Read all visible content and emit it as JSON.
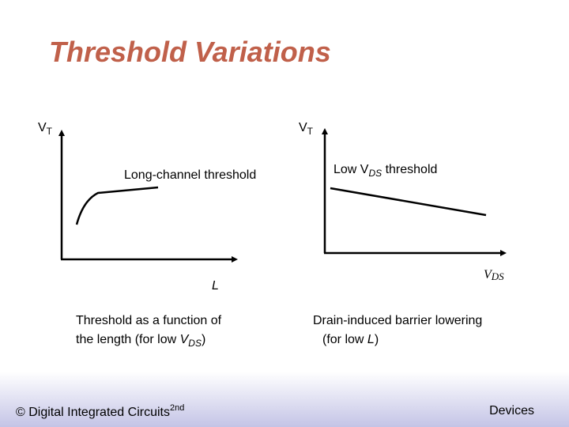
{
  "title": "Threshold Variations",
  "left_plot": {
    "y_axis": {
      "main": "V",
      "sub": "T"
    },
    "curve_label": "Long-channel threshold",
    "x_axis": "L",
    "caption": {
      "line1": "Threshold as a function of",
      "line2_start": "the length (for low ",
      "line2_var": "V",
      "line2_sub": "DS",
      "line2_end": ")"
    }
  },
  "right_plot": {
    "y_axis": {
      "main": "V",
      "sub": "T"
    },
    "curve_label": {
      "start": "Low ",
      "var": "V",
      "sub": "DS",
      "end": " threshold"
    },
    "x_axis": {
      "main": "V",
      "sub": "DS"
    },
    "caption": {
      "line1": "Drain-induced barrier lowering",
      "line2_start": "(for low ",
      "line2_var": "L",
      "line2_end": ")"
    }
  },
  "footer": {
    "left": "© Digital Integrated Circuits",
    "left_sup": "2nd",
    "right": "Devices"
  }
}
